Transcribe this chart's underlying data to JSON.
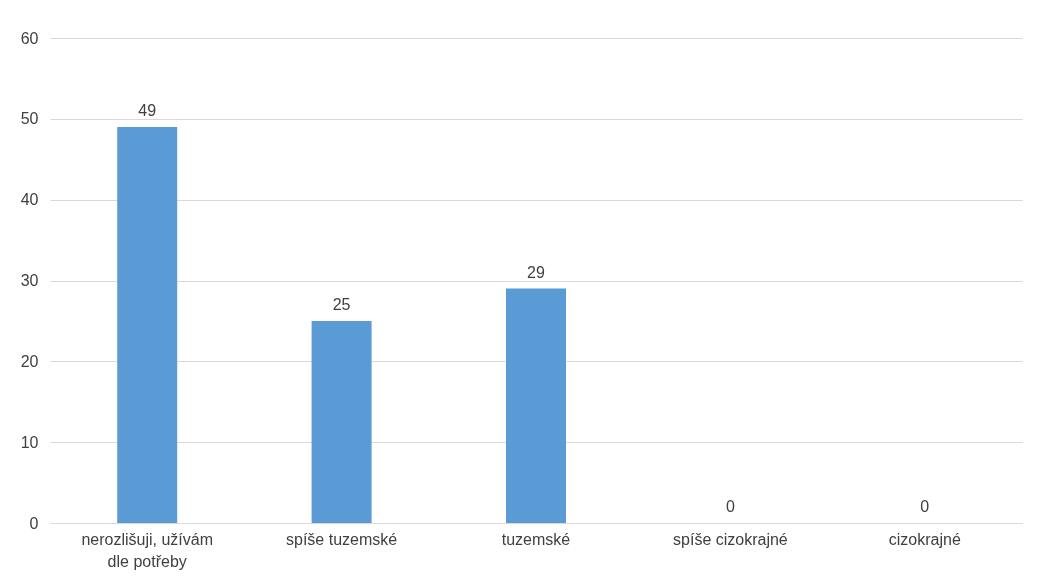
{
  "chart_data": {
    "type": "bar",
    "categories": [
      "nerozlišuji, užívám dle potřeby",
      "spíše tuzemské",
      "tuzemské",
      "spíše cizokrajné",
      "cizokrajné"
    ],
    "values": [
      49,
      25,
      29,
      0,
      0
    ],
    "color": "#5b9bd5",
    "ylim": [
      0,
      60
    ],
    "yticks": [
      0,
      10,
      20,
      30,
      40,
      50,
      60
    ],
    "grid": "y",
    "data_labels": true
  }
}
